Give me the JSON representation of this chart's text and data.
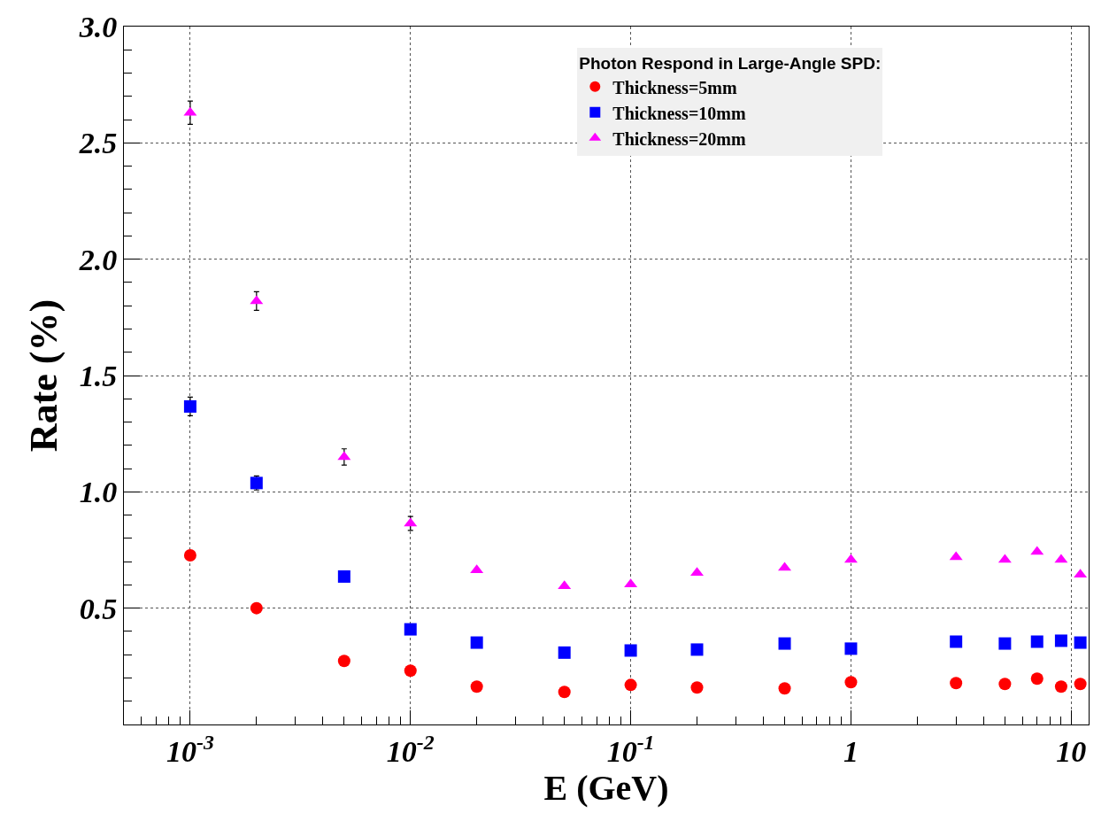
{
  "chart_data": {
    "type": "scatter",
    "xlabel": "E (GeV)",
    "ylabel": "Rate (%)",
    "legend_title": "Photon Respond in Large-Angle SPD:",
    "x": [
      0.001,
      0.002,
      0.005,
      0.01,
      0.02,
      0.05,
      0.1,
      0.2,
      0.5,
      1,
      3,
      5,
      7,
      9,
      11
    ],
    "series": [
      {
        "name": "Thickness=5mm",
        "color": "#ff0000",
        "marker": "circle",
        "values": [
          0.727,
          0.5,
          0.273,
          0.231,
          0.163,
          0.14,
          0.17,
          0.159,
          0.155,
          0.182,
          0.178,
          0.174,
          0.197,
          0.163,
          0.174
        ]
      },
      {
        "name": "Thickness=10mm",
        "color": "#0000ff",
        "marker": "square",
        "values": [
          1.367,
          1.038,
          0.636,
          0.409,
          0.352,
          0.309,
          0.318,
          0.322,
          0.348,
          0.326,
          0.356,
          0.348,
          0.356,
          0.36,
          0.352
        ],
        "errors": [
          0.04,
          0.03,
          null,
          null,
          null,
          null,
          null,
          null,
          null,
          null,
          null,
          null,
          null,
          null,
          null
        ]
      },
      {
        "name": "Thickness=20mm",
        "color": "#ff00ff",
        "marker": "triangle",
        "values": [
          2.63,
          1.82,
          1.15,
          0.864,
          0.663,
          0.595,
          0.602,
          0.652,
          0.674,
          0.708,
          0.72,
          0.708,
          0.742,
          0.708,
          0.644
        ],
        "errors": [
          0.05,
          0.04,
          0.035,
          0.03,
          null,
          null,
          null,
          null,
          null,
          null,
          null,
          null,
          null,
          null,
          null
        ]
      }
    ],
    "log": "x",
    "xlim": [
      0.0005,
      12
    ],
    "xticks": [
      {
        "value": 0.001,
        "label": "10$^{-3}$"
      },
      {
        "value": 0.01,
        "label": "10$^{-2}$"
      },
      {
        "value": 0.1,
        "label": "10$^{-1}$"
      },
      1,
      10
    ],
    "ylim": [
      0,
      3
    ],
    "yticks": [
      0.5,
      {
        "value": 1,
        "label": "1.0"
      },
      1.5,
      {
        "value": 2,
        "label": "2.0"
      },
      2.5,
      {
        "value": 3,
        "label": "3.0"
      }
    ],
    "grid": true,
    "legend": "top"
  }
}
